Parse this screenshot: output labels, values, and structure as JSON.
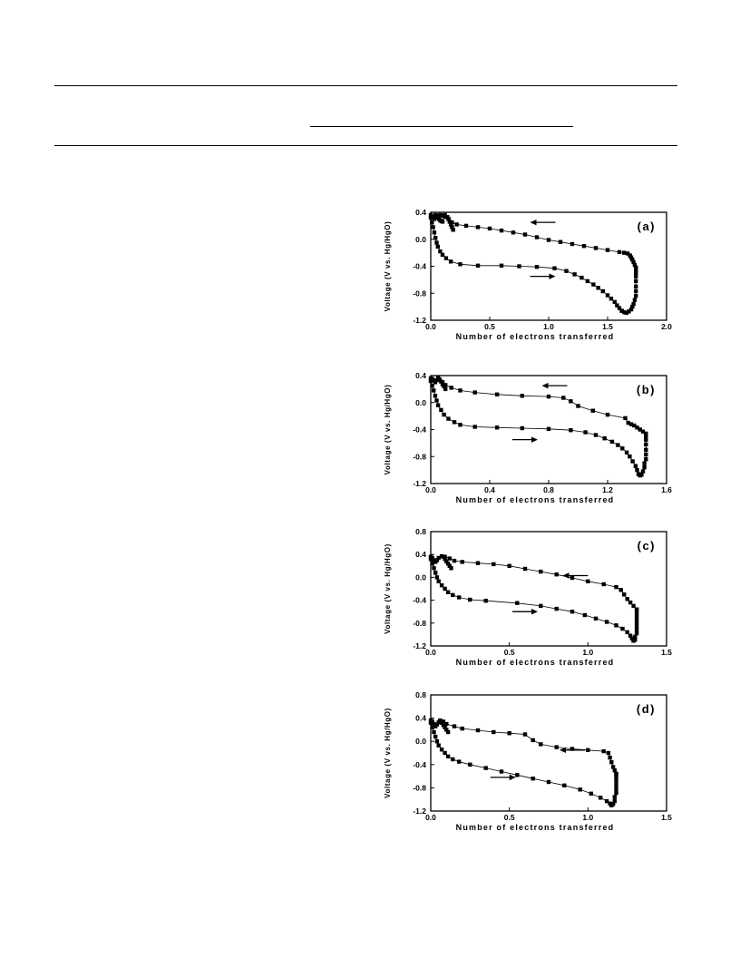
{
  "chart_data": [
    {
      "type": "line",
      "panel_label": "(a)",
      "xlabel": "Number of electrons transferred",
      "ylabel": "Voltage (V vs. Hg/HgO)",
      "xlim": [
        0,
        2.0
      ],
      "ylim": [
        -1.2,
        0.4
      ],
      "xticks": [
        0.0,
        0.5,
        1.0,
        1.5,
        2.0
      ],
      "xtick_labels": [
        "0.0",
        "0.5",
        "1.0",
        "1.5",
        "2.0"
      ],
      "yticks": [
        -1.2,
        -0.8,
        -0.4,
        0.0,
        0.4
      ],
      "ytick_labels": [
        "-1.2",
        "-0.8",
        "-0.4",
        "0.0",
        "0.4"
      ],
      "arrows": [
        {
          "x": 0.95,
          "y": 0.25,
          "direction": "left"
        },
        {
          "x": 0.95,
          "y": -0.55,
          "direction": "right"
        }
      ],
      "series": [
        {
          "x": [
            0.0,
            0.01,
            0.02,
            0.03,
            0.04,
            0.05,
            0.06,
            0.08,
            0.1,
            0.13,
            0.17,
            0.25,
            0.4,
            0.6,
            0.75,
            0.9,
            1.05,
            1.15,
            1.22,
            1.28,
            1.33,
            1.38,
            1.42,
            1.46,
            1.5,
            1.53,
            1.56,
            1.58,
            1.6,
            1.62
          ],
          "y": [
            0.32,
            0.25,
            0.18,
            0.1,
            0.02,
            -0.05,
            -0.11,
            -0.18,
            -0.23,
            -0.28,
            -0.33,
            -0.37,
            -0.39,
            -0.39,
            -0.4,
            -0.41,
            -0.43,
            -0.47,
            -0.52,
            -0.57,
            -0.62,
            -0.67,
            -0.72,
            -0.77,
            -0.83,
            -0.88,
            -0.93,
            -0.98,
            -1.02,
            -1.06
          ]
        },
        {
          "x": [
            1.62,
            1.64,
            1.66,
            1.68,
            1.7,
            1.71,
            1.72,
            1.73,
            1.74,
            1.74,
            1.74,
            1.74,
            1.74,
            1.74,
            1.74,
            1.74,
            1.74
          ],
          "y": [
            -1.06,
            -1.08,
            -1.09,
            -1.07,
            -1.04,
            -1.0,
            -0.96,
            -0.9,
            -0.84,
            -0.77,
            -0.7,
            -0.62,
            -0.55,
            -0.5,
            -0.46,
            -0.44,
            -0.42
          ]
        },
        {
          "x": [
            1.74,
            1.73,
            1.72,
            1.71,
            1.7,
            1.69,
            1.67,
            1.64,
            1.6,
            1.5,
            1.4,
            1.3,
            1.2,
            1.1,
            1.0,
            0.9,
            0.8,
            0.7,
            0.6,
            0.5,
            0.4,
            0.3,
            0.22,
            0.18,
            0.15,
            0.12,
            0.1,
            0.08,
            0.06,
            0.05,
            0.03,
            0.02,
            0.01,
            0.0
          ],
          "y": [
            -0.42,
            -0.38,
            -0.34,
            -0.3,
            -0.27,
            -0.24,
            -0.21,
            -0.2,
            -0.19,
            -0.16,
            -0.13,
            -0.1,
            -0.07,
            -0.04,
            -0.01,
            0.03,
            0.07,
            0.1,
            0.13,
            0.16,
            0.18,
            0.2,
            0.22,
            0.25,
            0.3,
            0.33,
            0.35,
            0.36,
            0.35,
            0.33,
            0.3,
            0.32,
            0.34,
            0.36
          ]
        },
        {
          "x": [
            0.12,
            0.14,
            0.15,
            0.16,
            0.17,
            0.18,
            0.19
          ],
          "y": [
            0.36,
            0.33,
            0.3,
            0.26,
            0.22,
            0.18,
            0.14
          ]
        },
        {
          "x": [
            0.04,
            0.05,
            0.06,
            0.07,
            0.08,
            0.09,
            0.1
          ],
          "y": [
            0.36,
            0.34,
            0.32,
            0.3,
            0.28,
            0.27,
            0.26
          ]
        }
      ]
    },
    {
      "type": "line",
      "panel_label": "(b)",
      "xlabel": "Number of electrons transferred",
      "ylabel": "Voltage (V vs. Hg/HgO)",
      "xlim": [
        0,
        1.6
      ],
      "ylim": [
        -1.2,
        0.4
      ],
      "xticks": [
        0.0,
        0.4,
        0.8,
        1.2,
        1.6
      ],
      "xtick_labels": [
        "0.0",
        "0.4",
        "0.8",
        "1.2",
        "1.6"
      ],
      "yticks": [
        -1.2,
        -0.8,
        -0.4,
        0.0,
        0.4
      ],
      "ytick_labels": [
        "-1.2",
        "-0.8",
        "-0.4",
        "0.0",
        "0.4"
      ],
      "arrows": [
        {
          "x": 0.84,
          "y": 0.25,
          "direction": "left"
        },
        {
          "x": 0.64,
          "y": -0.55,
          "direction": "right"
        }
      ],
      "series": [
        {
          "x": [
            0.0,
            0.01,
            0.02,
            0.03,
            0.04,
            0.05,
            0.07,
            0.09,
            0.12,
            0.16,
            0.2,
            0.3,
            0.45,
            0.62,
            0.8,
            0.95,
            1.05,
            1.12,
            1.18,
            1.23,
            1.27,
            1.3,
            1.33,
            1.35,
            1.37,
            1.39,
            1.4,
            1.41
          ],
          "y": [
            0.32,
            0.25,
            0.18,
            0.1,
            0.03,
            -0.04,
            -0.11,
            -0.18,
            -0.24,
            -0.29,
            -0.33,
            -0.36,
            -0.37,
            -0.38,
            -0.39,
            -0.41,
            -0.44,
            -0.48,
            -0.53,
            -0.58,
            -0.63,
            -0.68,
            -0.74,
            -0.8,
            -0.87,
            -0.94,
            -1.0,
            -1.06
          ]
        },
        {
          "x": [
            1.41,
            1.42,
            1.43,
            1.44,
            1.45,
            1.45,
            1.46,
            1.46,
            1.46,
            1.46,
            1.46,
            1.46,
            1.46
          ],
          "y": [
            -1.06,
            -1.08,
            -1.07,
            -1.02,
            -0.96,
            -0.9,
            -0.84,
            -0.77,
            -0.7,
            -0.62,
            -0.55,
            -0.5,
            -0.46
          ]
        },
        {
          "x": [
            1.46,
            1.44,
            1.42,
            1.4,
            1.38,
            1.36,
            1.34,
            1.32,
            1.2,
            1.1,
            1.0,
            0.95,
            0.9,
            0.8,
            0.62,
            0.45,
            0.3,
            0.2,
            0.14,
            0.1,
            0.08,
            0.06,
            0.05,
            0.04,
            0.03,
            0.02,
            0.01,
            0.0
          ],
          "y": [
            -0.46,
            -0.43,
            -0.4,
            -0.37,
            -0.34,
            -0.32,
            -0.3,
            -0.23,
            -0.18,
            -0.12,
            -0.05,
            0.02,
            0.07,
            0.09,
            0.1,
            0.12,
            0.15,
            0.18,
            0.22,
            0.26,
            0.3,
            0.34,
            0.36,
            0.33,
            0.3,
            0.33,
            0.35,
            0.36
          ]
        },
        {
          "x": [
            0.05,
            0.06,
            0.07,
            0.08,
            0.09,
            0.1
          ],
          "y": [
            0.37,
            0.34,
            0.31,
            0.27,
            0.24,
            0.2
          ]
        }
      ]
    },
    {
      "type": "line",
      "panel_label": "(c)",
      "xlabel": "Number of electrons transferred",
      "ylabel": "Voltage (V vs. Hg/HgO)",
      "xlim": [
        0,
        1.5
      ],
      "ylim": [
        -1.2,
        0.8
      ],
      "xticks": [
        0.0,
        0.5,
        1.0,
        1.5
      ],
      "xtick_labels": [
        "0.0",
        "0.5",
        "1.0",
        "1.5"
      ],
      "yticks": [
        -1.2,
        -0.8,
        -0.4,
        0.0,
        0.4,
        0.8
      ],
      "ytick_labels": [
        "-1.2",
        "-0.8",
        "-0.4",
        "0.0",
        "0.4",
        "0.8"
      ],
      "arrows": [
        {
          "x": 0.92,
          "y": 0.03,
          "direction": "left"
        },
        {
          "x": 0.6,
          "y": -0.6,
          "direction": "right"
        }
      ],
      "series": [
        {
          "x": [
            0.0,
            0.01,
            0.02,
            0.03,
            0.04,
            0.05,
            0.07,
            0.09,
            0.11,
            0.14,
            0.18,
            0.25,
            0.35,
            0.55,
            0.7,
            0.8,
            0.9,
            0.98,
            1.05,
            1.12,
            1.18,
            1.22,
            1.25,
            1.27,
            1.28,
            1.29
          ],
          "y": [
            0.32,
            0.24,
            0.16,
            0.08,
            0.0,
            -0.07,
            -0.14,
            -0.2,
            -0.26,
            -0.31,
            -0.35,
            -0.39,
            -0.41,
            -0.45,
            -0.5,
            -0.55,
            -0.6,
            -0.66,
            -0.72,
            -0.78,
            -0.84,
            -0.9,
            -0.96,
            -1.02,
            -1.07,
            -1.11
          ]
        },
        {
          "x": [
            1.29,
            1.3,
            1.3,
            1.31,
            1.31,
            1.31,
            1.31,
            1.31,
            1.31,
            1.31,
            1.31
          ],
          "y": [
            -1.11,
            -1.09,
            -1.04,
            -0.98,
            -0.92,
            -0.86,
            -0.8,
            -0.74,
            -0.68,
            -0.62,
            -0.56
          ]
        },
        {
          "x": [
            1.31,
            1.29,
            1.27,
            1.25,
            1.23,
            1.21,
            1.18,
            1.1,
            1.0,
            0.9,
            0.8,
            0.7,
            0.6,
            0.5,
            0.4,
            0.3,
            0.2,
            0.15,
            0.12,
            0.09,
            0.07,
            0.05,
            0.04,
            0.03,
            0.02,
            0.01,
            0.0
          ],
          "y": [
            -0.56,
            -0.5,
            -0.44,
            -0.38,
            -0.3,
            -0.22,
            -0.17,
            -0.12,
            -0.07,
            -0.01,
            0.05,
            0.1,
            0.15,
            0.2,
            0.23,
            0.25,
            0.27,
            0.29,
            0.33,
            0.36,
            0.37,
            0.34,
            0.3,
            0.27,
            0.3,
            0.34,
            0.36
          ]
        },
        {
          "x": [
            0.08,
            0.09,
            0.1,
            0.11,
            0.12,
            0.13
          ],
          "y": [
            0.36,
            0.32,
            0.28,
            0.24,
            0.2,
            0.16
          ]
        }
      ]
    },
    {
      "type": "line",
      "panel_label": "(d)",
      "xlabel": "Number of electrons transferred",
      "ylabel": "Voltage (V vs. Hg/HgO)",
      "xlim": [
        0,
        1.5
      ],
      "ylim": [
        -1.2,
        0.8
      ],
      "xticks": [
        0.0,
        0.5,
        1.0,
        1.5
      ],
      "xtick_labels": [
        "0.0",
        "0.5",
        "1.0",
        "1.5"
      ],
      "yticks": [
        -1.2,
        -0.8,
        -0.4,
        0.0,
        0.4,
        0.8
      ],
      "ytick_labels": [
        "-1.2",
        "-0.8",
        "-0.4",
        "0.0",
        "0.4",
        "0.8"
      ],
      "arrows": [
        {
          "x": 0.9,
          "y": -0.15,
          "direction": "left"
        },
        {
          "x": 0.46,
          "y": -0.62,
          "direction": "right"
        }
      ],
      "series": [
        {
          "x": [
            0.0,
            0.01,
            0.02,
            0.03,
            0.04,
            0.05,
            0.07,
            0.09,
            0.11,
            0.14,
            0.18,
            0.25,
            0.35,
            0.45,
            0.55,
            0.65,
            0.75,
            0.85,
            0.95,
            1.02,
            1.08,
            1.12,
            1.14,
            1.15
          ],
          "y": [
            0.32,
            0.24,
            0.16,
            0.08,
            0.0,
            -0.07,
            -0.14,
            -0.2,
            -0.26,
            -0.31,
            -0.35,
            -0.4,
            -0.46,
            -0.52,
            -0.58,
            -0.64,
            -0.7,
            -0.76,
            -0.83,
            -0.9,
            -0.97,
            -1.03,
            -1.07,
            -1.1
          ]
        },
        {
          "x": [
            1.15,
            1.16,
            1.17,
            1.17,
            1.18,
            1.18,
            1.18,
            1.18,
            1.18,
            1.18
          ],
          "y": [
            -1.1,
            -1.08,
            -1.03,
            -0.96,
            -0.89,
            -0.82,
            -0.75,
            -0.68,
            -0.62,
            -0.56
          ]
        },
        {
          "x": [
            1.18,
            1.17,
            1.16,
            1.15,
            1.14,
            1.13,
            1.1,
            1.0,
            0.9,
            0.8,
            0.7,
            0.65,
            0.6,
            0.5,
            0.4,
            0.3,
            0.2,
            0.15,
            0.1,
            0.08,
            0.06,
            0.05,
            0.04,
            0.03,
            0.02,
            0.01,
            0.0
          ],
          "y": [
            -0.56,
            -0.5,
            -0.44,
            -0.36,
            -0.28,
            -0.2,
            -0.17,
            -0.15,
            -0.13,
            -0.1,
            -0.05,
            0.02,
            0.12,
            0.14,
            0.16,
            0.19,
            0.22,
            0.26,
            0.3,
            0.34,
            0.36,
            0.33,
            0.29,
            0.26,
            0.3,
            0.34,
            0.36
          ]
        },
        {
          "x": [
            0.06,
            0.07,
            0.08,
            0.09,
            0.1,
            0.11
          ],
          "y": [
            0.36,
            0.32,
            0.28,
            0.24,
            0.2,
            0.16
          ]
        }
      ]
    }
  ]
}
